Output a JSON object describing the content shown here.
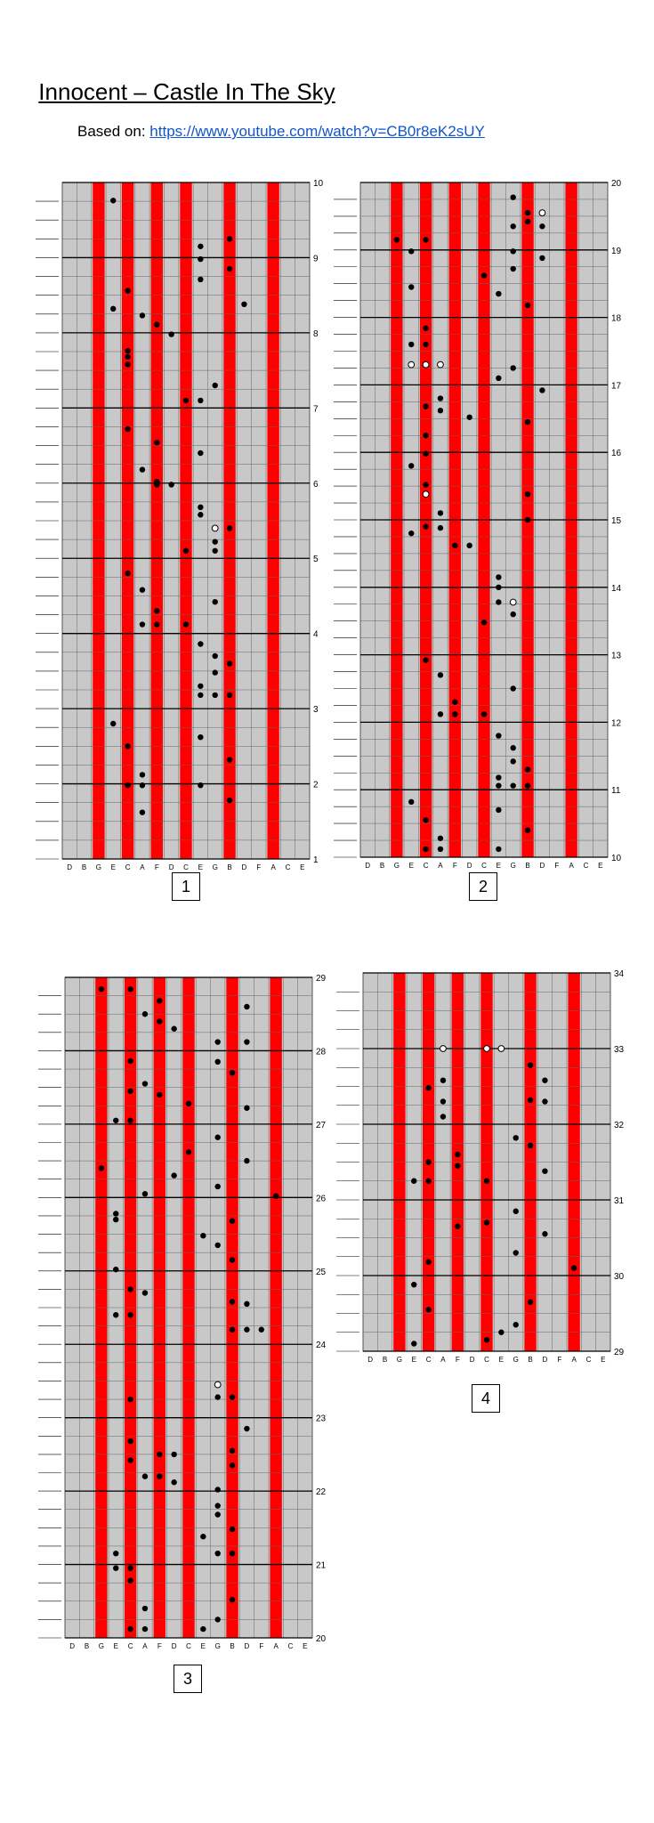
{
  "document": {
    "title": "Innocent – Castle In The Sky",
    "based_on_label": "Based on:",
    "based_on_link": "https://www.youtube.com/watch?v=CB0r8eK2sUY"
  },
  "note_names": [
    "D",
    "B",
    "G",
    "E",
    "C",
    "A",
    "F",
    "D",
    "C",
    "E",
    "G",
    "B",
    "D",
    "F",
    "A",
    "C",
    "E"
  ],
  "red_tines": [
    2,
    4,
    6,
    8,
    11,
    14
  ],
  "sections": [
    {
      "label": "1",
      "start_measure": 1,
      "end_measure": 10,
      "notes": [
        [
          9.76,
          3
        ],
        [
          9.25,
          11
        ],
        [
          9.15,
          9
        ],
        [
          8.98,
          9
        ],
        [
          8.85,
          11
        ],
        [
          8.71,
          9
        ],
        [
          8.56,
          4
        ],
        [
          8.38,
          12
        ],
        [
          8.32,
          3
        ],
        [
          8.23,
          5
        ],
        [
          8.11,
          6
        ],
        [
          7.98,
          7
        ],
        [
          7.76,
          4
        ],
        [
          7.68,
          4
        ],
        [
          7.58,
          4
        ],
        [
          7.3,
          10
        ],
        [
          7.1,
          8
        ],
        [
          7.1,
          9
        ],
        [
          6.72,
          4
        ],
        [
          6.54,
          6
        ],
        [
          6.4,
          9
        ],
        [
          6.18,
          5
        ],
        [
          6.02,
          6
        ],
        [
          5.98,
          6
        ],
        [
          5.98,
          7
        ],
        [
          5.68,
          9
        ],
        [
          5.58,
          9
        ],
        [
          5.4,
          11
        ],
        [
          5.22,
          10
        ],
        [
          5.1,
          8
        ],
        [
          5.1,
          10
        ],
        [
          4.8,
          4
        ],
        [
          4.58,
          5
        ],
        [
          4.42,
          10
        ],
        [
          4.3,
          6
        ],
        [
          4.12,
          5
        ],
        [
          4.12,
          6
        ],
        [
          4.12,
          8
        ],
        [
          3.86,
          9
        ],
        [
          3.7,
          10
        ],
        [
          3.6,
          11
        ],
        [
          3.48,
          10
        ],
        [
          3.3,
          9
        ],
        [
          3.18,
          9
        ],
        [
          3.18,
          10
        ],
        [
          3.18,
          11
        ],
        [
          2.8,
          3
        ],
        [
          2.62,
          9
        ],
        [
          2.5,
          4
        ],
        [
          2.32,
          11
        ],
        [
          2.12,
          5
        ],
        [
          1.98,
          4
        ],
        [
          1.98,
          5
        ],
        [
          1.98,
          9
        ],
        [
          1.78,
          11
        ],
        [
          1.62,
          5
        ]
      ],
      "open_notes": [
        [
          5.4,
          10
        ]
      ]
    },
    {
      "label": "2",
      "start_measure": 10,
      "end_measure": 20,
      "notes": [
        [
          19.78,
          10
        ],
        [
          19.55,
          11
        ],
        [
          19.42,
          11
        ],
        [
          19.35,
          10
        ],
        [
          19.35,
          12
        ],
        [
          19.15,
          2
        ],
        [
          19.15,
          4
        ],
        [
          18.98,
          3
        ],
        [
          18.98,
          10
        ],
        [
          18.88,
          12
        ],
        [
          18.72,
          10
        ],
        [
          18.62,
          8
        ],
        [
          18.45,
          3
        ],
        [
          18.35,
          9
        ],
        [
          18.18,
          11
        ],
        [
          17.84,
          4
        ],
        [
          17.6,
          3
        ],
        [
          17.6,
          4
        ],
        [
          17.25,
          10
        ],
        [
          17.1,
          9
        ],
        [
          16.92,
          12
        ],
        [
          16.8,
          5
        ],
        [
          16.68,
          4
        ],
        [
          16.62,
          5
        ],
        [
          16.52,
          7
        ],
        [
          16.45,
          11
        ],
        [
          16.25,
          4
        ],
        [
          15.98,
          4
        ],
        [
          15.8,
          3
        ],
        [
          15.52,
          4
        ],
        [
          15.38,
          11
        ],
        [
          15.1,
          5
        ],
        [
          15.0,
          11
        ],
        [
          14.9,
          4
        ],
        [
          14.88,
          5
        ],
        [
          14.8,
          3
        ],
        [
          14.62,
          6
        ],
        [
          14.62,
          7
        ],
        [
          14.15,
          9
        ],
        [
          14.0,
          9
        ],
        [
          13.78,
          9
        ],
        [
          13.6,
          10
        ],
        [
          13.48,
          8
        ],
        [
          12.92,
          4
        ],
        [
          12.7,
          5
        ],
        [
          12.5,
          10
        ],
        [
          12.3,
          6
        ],
        [
          12.12,
          5
        ],
        [
          12.12,
          6
        ],
        [
          12.12,
          8
        ],
        [
          11.8,
          9
        ],
        [
          11.62,
          10
        ],
        [
          11.42,
          10
        ],
        [
          11.3,
          11
        ],
        [
          11.18,
          9
        ],
        [
          11.06,
          9
        ],
        [
          11.06,
          10
        ],
        [
          11.06,
          11
        ],
        [
          10.82,
          3
        ],
        [
          10.7,
          9
        ],
        [
          10.55,
          4
        ],
        [
          10.4,
          11
        ],
        [
          10.28,
          5
        ],
        [
          10.12,
          4
        ],
        [
          10.12,
          5
        ],
        [
          10.12,
          9
        ]
      ],
      "open_notes": [
        [
          19.55,
          12
        ],
        [
          17.3,
          3
        ],
        [
          17.3,
          4
        ],
        [
          17.3,
          5
        ],
        [
          15.38,
          4
        ],
        [
          13.78,
          10
        ]
      ]
    },
    {
      "label": "3",
      "start_measure": 20,
      "end_measure": 29,
      "notes": [
        [
          28.84,
          2
        ],
        [
          28.84,
          4
        ],
        [
          28.68,
          6
        ],
        [
          28.6,
          12
        ],
        [
          28.5,
          5
        ],
        [
          28.4,
          6
        ],
        [
          28.3,
          7
        ],
        [
          28.12,
          10
        ],
        [
          28.12,
          12
        ],
        [
          27.86,
          4
        ],
        [
          27.85,
          10
        ],
        [
          27.7,
          11
        ],
        [
          27.55,
          5
        ],
        [
          27.45,
          4
        ],
        [
          27.4,
          6
        ],
        [
          27.28,
          8
        ],
        [
          27.22,
          12
        ],
        [
          27.05,
          3
        ],
        [
          27.05,
          4
        ],
        [
          26.82,
          10
        ],
        [
          26.62,
          8
        ],
        [
          26.5,
          12
        ],
        [
          26.4,
          2
        ],
        [
          26.3,
          7
        ],
        [
          26.15,
          10
        ],
        [
          26.05,
          5
        ],
        [
          26.02,
          14
        ],
        [
          25.78,
          3
        ],
        [
          25.7,
          3
        ],
        [
          25.68,
          11
        ],
        [
          25.48,
          9
        ],
        [
          25.35,
          10
        ],
        [
          25.15,
          11
        ],
        [
          25.02,
          3
        ],
        [
          24.75,
          4
        ],
        [
          24.7,
          5
        ],
        [
          24.58,
          11
        ],
        [
          24.55,
          12
        ],
        [
          24.4,
          3
        ],
        [
          24.4,
          4
        ],
        [
          24.2,
          11
        ],
        [
          24.2,
          12
        ],
        [
          24.2,
          13
        ],
        [
          23.45,
          10
        ],
        [
          23.28,
          10
        ],
        [
          23.28,
          11
        ],
        [
          23.25,
          4
        ],
        [
          22.85,
          12
        ],
        [
          22.68,
          4
        ],
        [
          22.55,
          11
        ],
        [
          22.5,
          6
        ],
        [
          22.5,
          7
        ],
        [
          22.42,
          4
        ],
        [
          22.35,
          11
        ],
        [
          22.2,
          5
        ],
        [
          22.2,
          6
        ],
        [
          22.12,
          7
        ],
        [
          22.02,
          10
        ],
        [
          21.8,
          10
        ],
        [
          21.68,
          10
        ],
        [
          21.48,
          11
        ],
        [
          21.38,
          9
        ],
        [
          21.15,
          3
        ],
        [
          21.15,
          10
        ],
        [
          21.15,
          11
        ],
        [
          20.95,
          3
        ],
        [
          20.95,
          4
        ],
        [
          20.78,
          4
        ],
        [
          20.52,
          11
        ],
        [
          20.4,
          5
        ],
        [
          20.25,
          10
        ],
        [
          20.12,
          4
        ],
        [
          20.12,
          5
        ],
        [
          20.12,
          9
        ]
      ],
      "open_notes": [
        [
          23.45,
          10
        ]
      ]
    },
    {
      "label": "4",
      "start_measure": 29,
      "end_measure": 34,
      "notes": [
        [
          32.78,
          11
        ],
        [
          32.58,
          5
        ],
        [
          32.58,
          12
        ],
        [
          32.48,
          4
        ],
        [
          32.32,
          11
        ],
        [
          32.3,
          12
        ],
        [
          32.3,
          5
        ],
        [
          32.1,
          5
        ],
        [
          31.82,
          10
        ],
        [
          31.72,
          11
        ],
        [
          31.6,
          6
        ],
        [
          31.5,
          4
        ],
        [
          31.45,
          6
        ],
        [
          31.38,
          12
        ],
        [
          31.25,
          4
        ],
        [
          31.25,
          3
        ],
        [
          31.25,
          8
        ],
        [
          30.85,
          10
        ],
        [
          30.7,
          8
        ],
        [
          30.65,
          6
        ],
        [
          30.55,
          12
        ],
        [
          30.3,
          10
        ],
        [
          30.18,
          4
        ],
        [
          30.1,
          14
        ],
        [
          29.88,
          3
        ],
        [
          29.65,
          11
        ],
        [
          29.55,
          4
        ],
        [
          29.35,
          10
        ],
        [
          29.25,
          9
        ],
        [
          29.15,
          8
        ],
        [
          29.1,
          3
        ]
      ],
      "open_notes": [
        [
          33.0,
          5
        ],
        [
          33.0,
          8
        ],
        [
          33.0,
          9
        ]
      ]
    }
  ]
}
